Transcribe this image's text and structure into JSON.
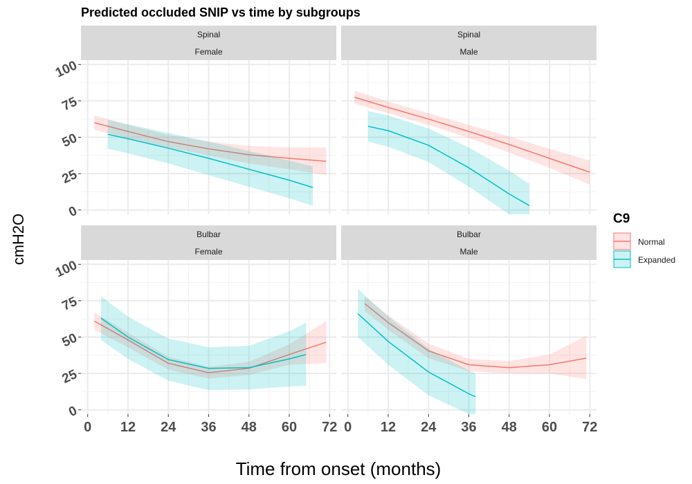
{
  "title": "Predicted occluded SNIP vs time by subgroups",
  "xlabel": "Time from onset (months)",
  "ylabel": "cmH2O",
  "legend": {
    "title": "C9",
    "items": [
      {
        "label": "Normal",
        "color": "#F8766D"
      },
      {
        "label": "Expanded",
        "color": "#00BFC4"
      }
    ]
  },
  "chart_data": {
    "type": "line",
    "title": "Predicted occluded SNIP vs time by subgroups",
    "xlabel": "Time from onset (months)",
    "ylabel": "cmH2O",
    "xlim": [
      -2,
      74
    ],
    "ylim": [
      -3,
      103
    ],
    "x_ticks": [
      0,
      12,
      24,
      36,
      48,
      60,
      72
    ],
    "y_ticks": [
      0,
      25,
      50,
      75,
      100
    ],
    "grid": true,
    "legend_position": "right",
    "panels": [
      {
        "strip_top": "Spinal",
        "strip_bottom": "Female",
        "series": [
          {
            "name": "Normal",
            "color": "#F8766D",
            "x": [
              2,
              12,
              24,
              36,
              48,
              60,
              71
            ],
            "y": [
              60,
              54,
              47,
              42,
              38,
              35.5,
              33.5
            ],
            "lower": [
              55,
              49.5,
              43,
              37.5,
              32,
              28,
              24
            ],
            "upper": [
              65,
              58.5,
              51.5,
              47,
              44,
              43,
              43
            ]
          },
          {
            "name": "Expanded",
            "color": "#00BFC4",
            "x": [
              6,
              12,
              24,
              36,
              48,
              60,
              67
            ],
            "y": [
              52,
              49,
              42.5,
              35.5,
              28,
              20.5,
              15.5
            ],
            "lower": [
              42,
              39,
              32,
              24,
              16,
              8,
              3
            ],
            "upper": [
              62,
              59,
              53,
              47,
              40.5,
              34,
              30
            ]
          }
        ]
      },
      {
        "strip_top": "Spinal",
        "strip_bottom": "Male",
        "series": [
          {
            "name": "Normal",
            "color": "#F8766D",
            "x": [
              2,
              12,
              24,
              36,
              48,
              60,
              72
            ],
            "y": [
              77.5,
              70.5,
              62.5,
              54,
              45,
              35.5,
              26
            ],
            "lower": [
              73,
              66.5,
              58.5,
              49.5,
              39.5,
              29,
              17.5
            ],
            "upper": [
              82,
              74.5,
              66.5,
              58.5,
              50.5,
              42,
              34
            ]
          },
          {
            "name": "Expanded",
            "color": "#00BFC4",
            "x": [
              6,
              12,
              24,
              36,
              48,
              54
            ],
            "y": [
              57.5,
              54.5,
              44.5,
              29,
              11,
              3
            ],
            "lower": [
              47,
              43.5,
              33,
              16,
              -3,
              -3
            ],
            "upper": [
              68,
              65,
              56,
              43,
              27,
              18
            ]
          }
        ]
      },
      {
        "strip_top": "Bulbar",
        "strip_bottom": "Female",
        "series": [
          {
            "name": "Normal",
            "color": "#F8766D",
            "x": [
              2,
              12,
              24,
              36,
              48,
              60,
              71
            ],
            "y": [
              61,
              48,
              32,
              25.5,
              28.5,
              38,
              46.5
            ],
            "lower": [
              55,
              43,
              27.5,
              21.5,
              24,
              31,
              32
            ],
            "upper": [
              67,
              53,
              36.5,
              29.5,
              33,
              45,
              61
            ]
          },
          {
            "name": "Expanded",
            "color": "#00BFC4",
            "x": [
              4,
              12,
              24,
              36,
              48,
              60,
              65
            ],
            "y": [
              63,
              50,
              34.5,
              28.5,
              29,
              35,
              38
            ],
            "lower": [
              48,
              35,
              20,
              13.5,
              14,
              16,
              16.5
            ],
            "upper": [
              78,
              64,
              49,
              43,
              44,
              54,
              60
            ]
          }
        ]
      },
      {
        "strip_top": "Bulbar",
        "strip_bottom": "Male",
        "series": [
          {
            "name": "Normal",
            "color": "#F8766D",
            "x": [
              5,
              12,
              24,
              36,
              48,
              60,
              71
            ],
            "y": [
              73,
              60,
              40.5,
              31,
              29,
              31,
              35.5
            ],
            "lower": [
              68,
              55,
              35.5,
              26.5,
              25,
              25,
              21
            ],
            "upper": [
              78,
              65,
              45.5,
              35,
              33.5,
              38,
              51
            ]
          },
          {
            "name": "Expanded",
            "color": "#00BFC4",
            "x": [
              3,
              12,
              24,
              36,
              38
            ],
            "y": [
              66,
              47,
              26,
              11,
              9
            ],
            "lower": [
              50,
              31,
              10,
              -3,
              -3
            ],
            "upper": [
              83,
              64,
              42,
              27,
              25
            ]
          }
        ]
      }
    ]
  }
}
